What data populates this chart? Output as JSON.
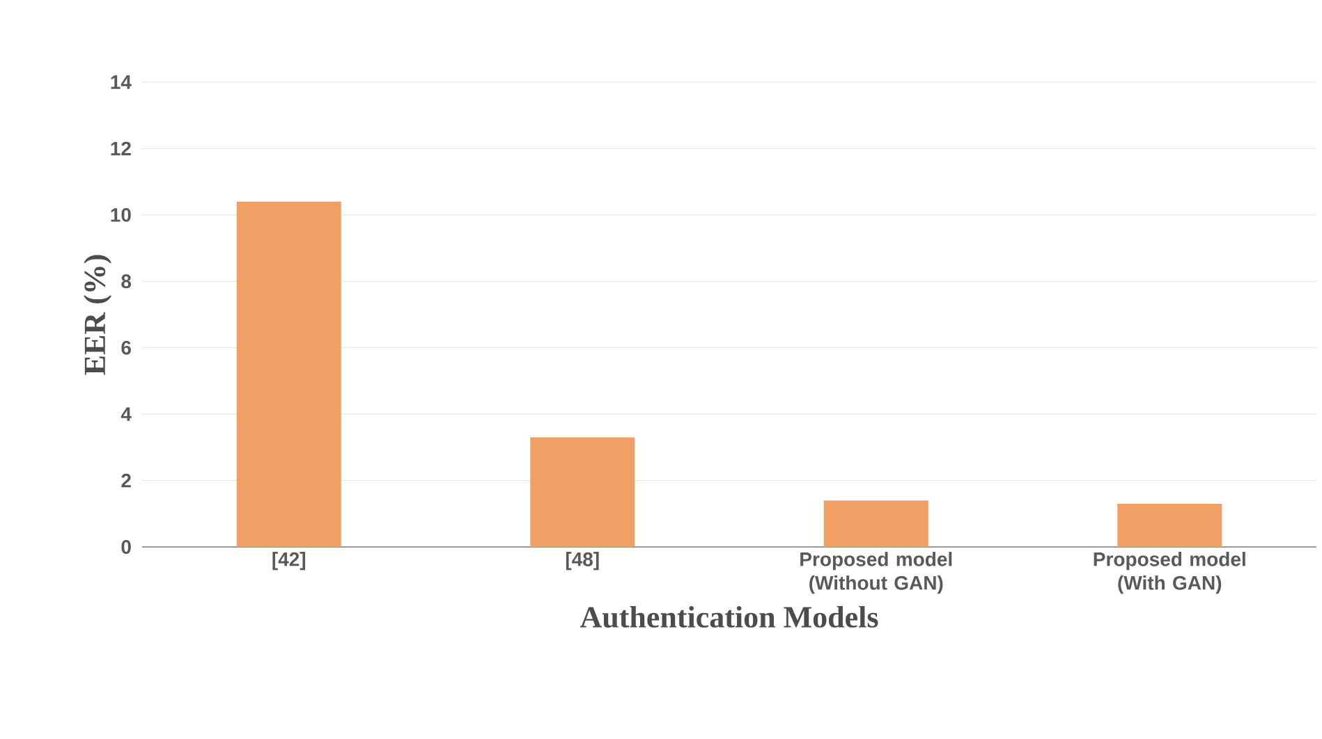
{
  "chart_data": {
    "type": "bar",
    "xlabel": "Authentication Models",
    "ylabel": "EER (%)",
    "categories": [
      "[42]",
      "[48]",
      "Proposed model (Without GAN)",
      "Proposed model (With GAN)"
    ],
    "values": [
      10.4,
      3.3,
      1.4,
      1.3
    ],
    "color": "#f0a064",
    "ylim": [
      0,
      14
    ],
    "yticks": [
      0,
      2,
      4,
      6,
      8,
      10,
      12,
      14
    ],
    "grid": "y"
  }
}
